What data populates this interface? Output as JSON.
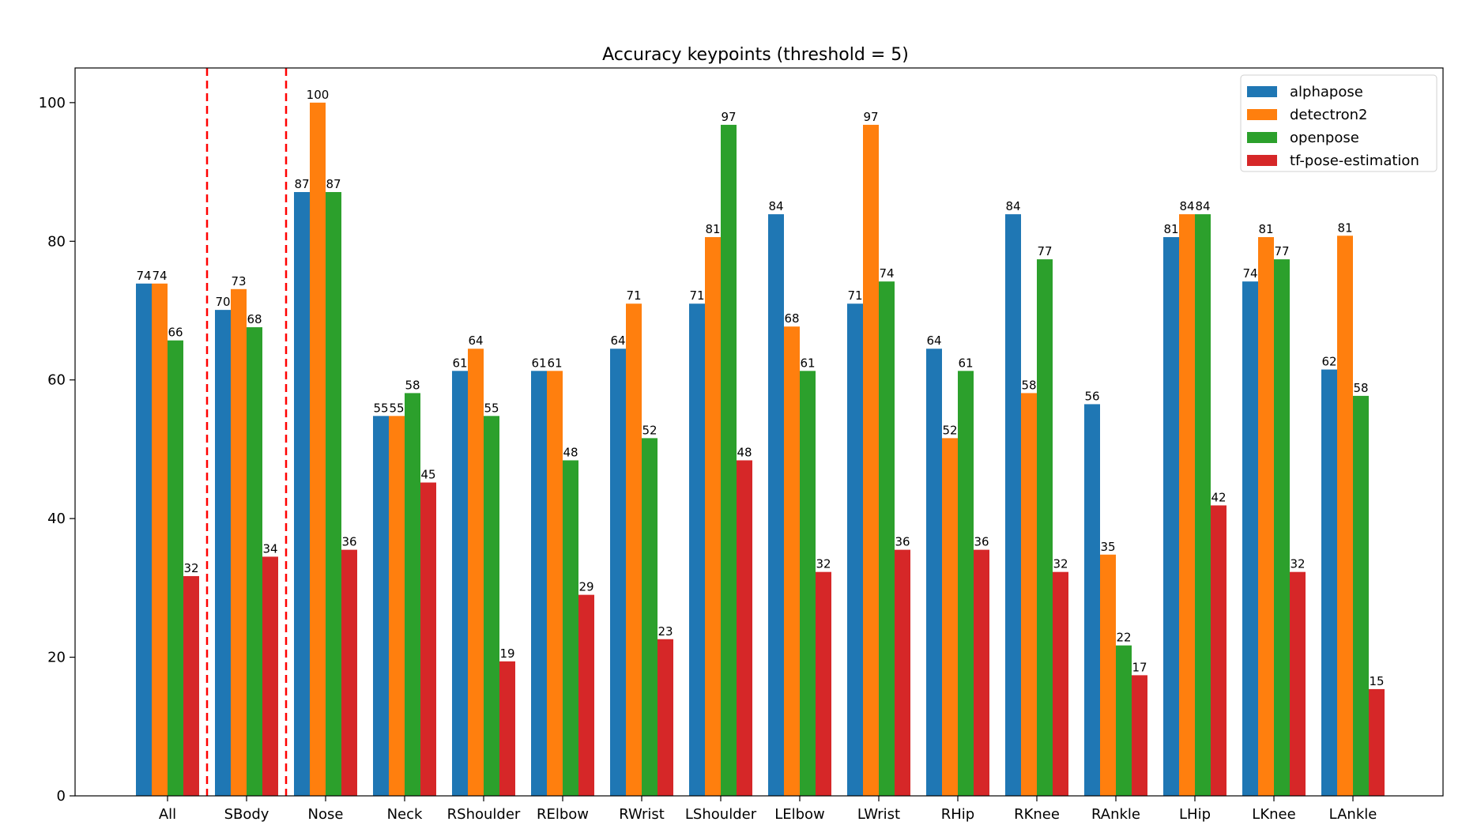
{
  "chart_data": {
    "type": "bar",
    "title": "Accuracy keypoints (threshold = 5)",
    "xlabel": "",
    "ylabel": "",
    "ylim": [
      0,
      105
    ],
    "yticks": [
      0,
      20,
      40,
      60,
      80,
      100
    ],
    "grid": false,
    "legend_position": "top-right",
    "categories": [
      "All",
      "SBody",
      "Nose",
      "Neck",
      "RShoulder",
      "RElbow",
      "RWrist",
      "LShoulder",
      "LElbow",
      "LWrist",
      "RHip",
      "RKnee",
      "RAnkle",
      "LHip",
      "LKnee",
      "LAnkle"
    ],
    "series": [
      {
        "name": "alphapose",
        "color": "#1f77b4",
        "values": [
          73.9,
          70.1,
          87.1,
          54.8,
          61.3,
          61.3,
          64.5,
          71.0,
          83.9,
          71.0,
          64.5,
          83.9,
          56.5,
          80.6,
          74.2,
          61.5
        ],
        "labels": [
          "74",
          "70",
          "87",
          "55",
          "61",
          "61",
          "64",
          "71",
          "84",
          "71",
          "64",
          "84",
          "56",
          "81",
          "74",
          "62"
        ]
      },
      {
        "name": "detectron2",
        "color": "#ff7f0e",
        "values": [
          73.9,
          73.1,
          100.0,
          54.8,
          64.5,
          61.3,
          71.0,
          80.6,
          67.7,
          96.8,
          51.6,
          58.1,
          34.8,
          83.9,
          80.6,
          80.8
        ],
        "labels": [
          "74",
          "73",
          "100",
          "55",
          "64",
          "61",
          "71",
          "81",
          "68",
          "97",
          "52",
          "58",
          "35",
          "84",
          "81",
          "81"
        ]
      },
      {
        "name": "openpose",
        "color": "#2ca02c",
        "values": [
          65.7,
          67.6,
          87.1,
          58.1,
          54.8,
          48.4,
          51.6,
          96.8,
          61.3,
          74.2,
          61.3,
          77.4,
          21.7,
          83.9,
          77.4,
          57.7
        ],
        "labels": [
          "66",
          "68",
          "87",
          "58",
          "55",
          "48",
          "52",
          "97",
          "61",
          "74",
          "61",
          "77",
          "22",
          "84",
          "77",
          "58"
        ]
      },
      {
        "name": "tf-pose-estimation",
        "color": "#d62728",
        "values": [
          31.7,
          34.5,
          35.5,
          45.2,
          19.4,
          29.0,
          22.6,
          48.4,
          32.3,
          35.5,
          35.5,
          32.3,
          17.4,
          41.9,
          32.3,
          15.4
        ],
        "labels": [
          "32",
          "34",
          "36",
          "45",
          "19",
          "29",
          "23",
          "48",
          "32",
          "36",
          "36",
          "32",
          "17",
          "42",
          "32",
          "15"
        ]
      }
    ],
    "separator_lines": {
      "after_categories": [
        0,
        1
      ],
      "color": "#ff0000",
      "style": "dashed"
    }
  }
}
